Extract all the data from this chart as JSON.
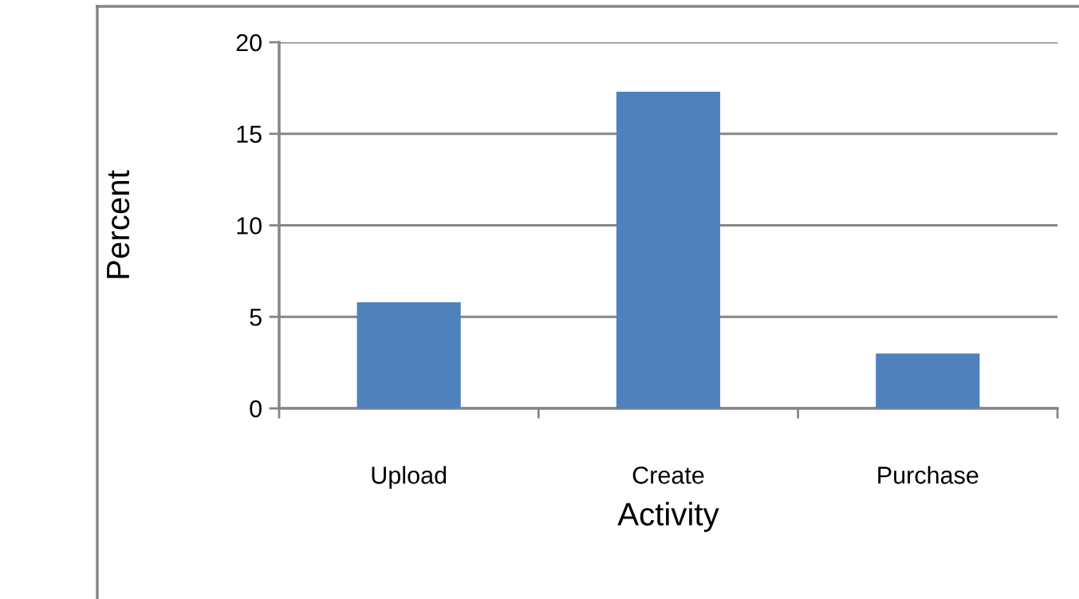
{
  "chart_data": {
    "type": "bar",
    "xlabel": "Activity",
    "ylabel": "Percent",
    "categories": [
      "Upload",
      "Create",
      "Purchase"
    ],
    "values": [
      5.8,
      17.3,
      3.0
    ],
    "color": "#4f81bd",
    "ylim": [
      0,
      20
    ],
    "yticks": [
      0,
      5,
      10,
      15,
      20
    ],
    "grid": "y",
    "legend": false
  }
}
